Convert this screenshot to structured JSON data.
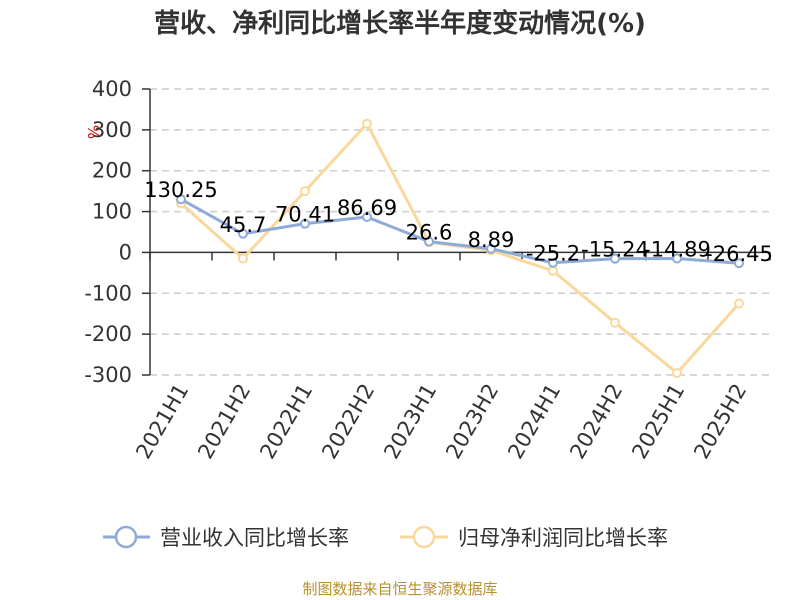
{
  "chart_data": {
    "type": "line",
    "title": "营收、净利同比增长率半年度变动情况(%)",
    "ylabel": "%",
    "xlabel": "",
    "categories": [
      "2021H1",
      "2021H2",
      "2022H1",
      "2022H2",
      "2023H1",
      "2023H2",
      "2024H1",
      "2024H2",
      "2025H1",
      "2025H2"
    ],
    "ylim": [
      -300,
      400
    ],
    "yticks": [
      400,
      300,
      200,
      100,
      0,
      -100,
      -200,
      -300
    ],
    "ytick_labels": [
      "400",
      "300",
      "200",
      "100",
      "0",
      "-100",
      "-200",
      "-300"
    ],
    "grid": true,
    "legend_position": "bottom",
    "series": [
      {
        "name": "营业收入同比增长率",
        "color": "#8eaad6",
        "values": [
          130.25,
          45.7,
          70.41,
          86.69,
          26.6,
          8.89,
          -25.2,
          -15.24,
          -14.89,
          -26.45
        ],
        "labels": [
          "130.25",
          "45.7",
          "70.41",
          "86.69",
          "26.6",
          "8.89",
          "-25.2",
          "-15.24",
          "-14.89",
          "-26.45"
        ]
      },
      {
        "name": "归母净利润同比增长率",
        "color": "#fad89c",
        "values": [
          120,
          -15,
          150,
          315,
          25,
          5,
          -45,
          -172,
          -295,
          -125
        ]
      }
    ]
  },
  "footer": {
    "source": "制图数据来自恒生聚源数据库"
  }
}
